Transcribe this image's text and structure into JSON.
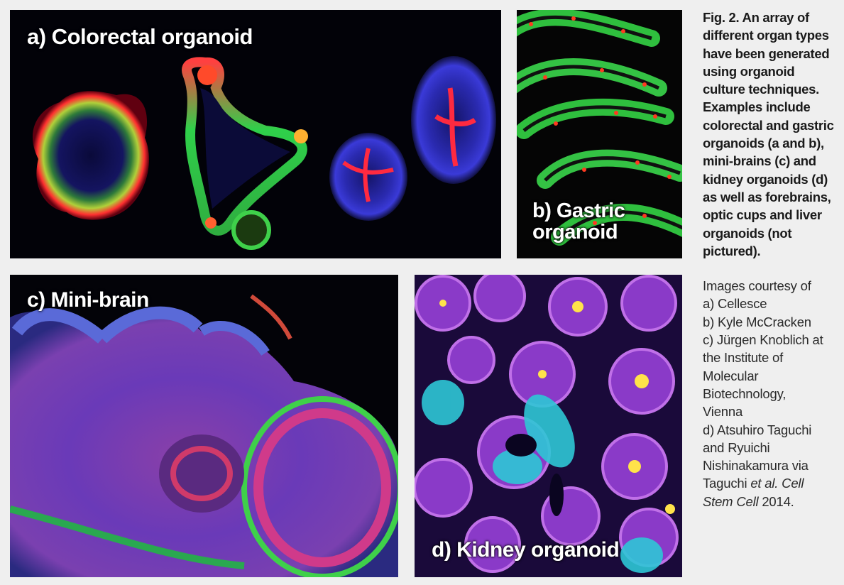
{
  "panels": {
    "a": {
      "label": "a) Colorectal organoid"
    },
    "b": {
      "label_line1": "b) Gastric",
      "label_line2": "organoid"
    },
    "c": {
      "label": "c) Mini-brain"
    },
    "d": {
      "label": "d) Kidney organoid"
    }
  },
  "caption": {
    "text": "Fig. 2. An array of different organ types have been generated using organoid culture techniques. Examples include colorectal and gastric organoids (a and b), mini-brains (c) and kidney organoids (d) as well as forebrains, optic cups and liver organoids (not pictured).",
    "credits_heading": "Images courtesy of",
    "credit_a": "a) Cellesce",
    "credit_b": "b) Kyle McCracken",
    "credit_c1": "c) Jürgen Knoblich at",
    "credit_c2": "the Institute of",
    "credit_c3": "Molecular",
    "credit_c4": "Biotechnology,",
    "credit_c5": "Vienna",
    "credit_d1": "d) Atsuhiro Taguchi",
    "credit_d2": "and Ryuichi",
    "credit_d3": "Nishinakamura via",
    "credit_d4_plain": "Taguchi ",
    "credit_d4_italic": "et al. Cell",
    "credit_d5_italic": "Stem Cell",
    "credit_d5_plain": " 2014."
  },
  "colors": {
    "background": "#efefef",
    "panel": "#000000",
    "red": "#ff2a2a",
    "green": "#3fd04a",
    "blue": "#3a3ad8",
    "magenta": "#b43ad8",
    "yellow": "#ffe34a",
    "cyan": "#2ec7d6"
  }
}
